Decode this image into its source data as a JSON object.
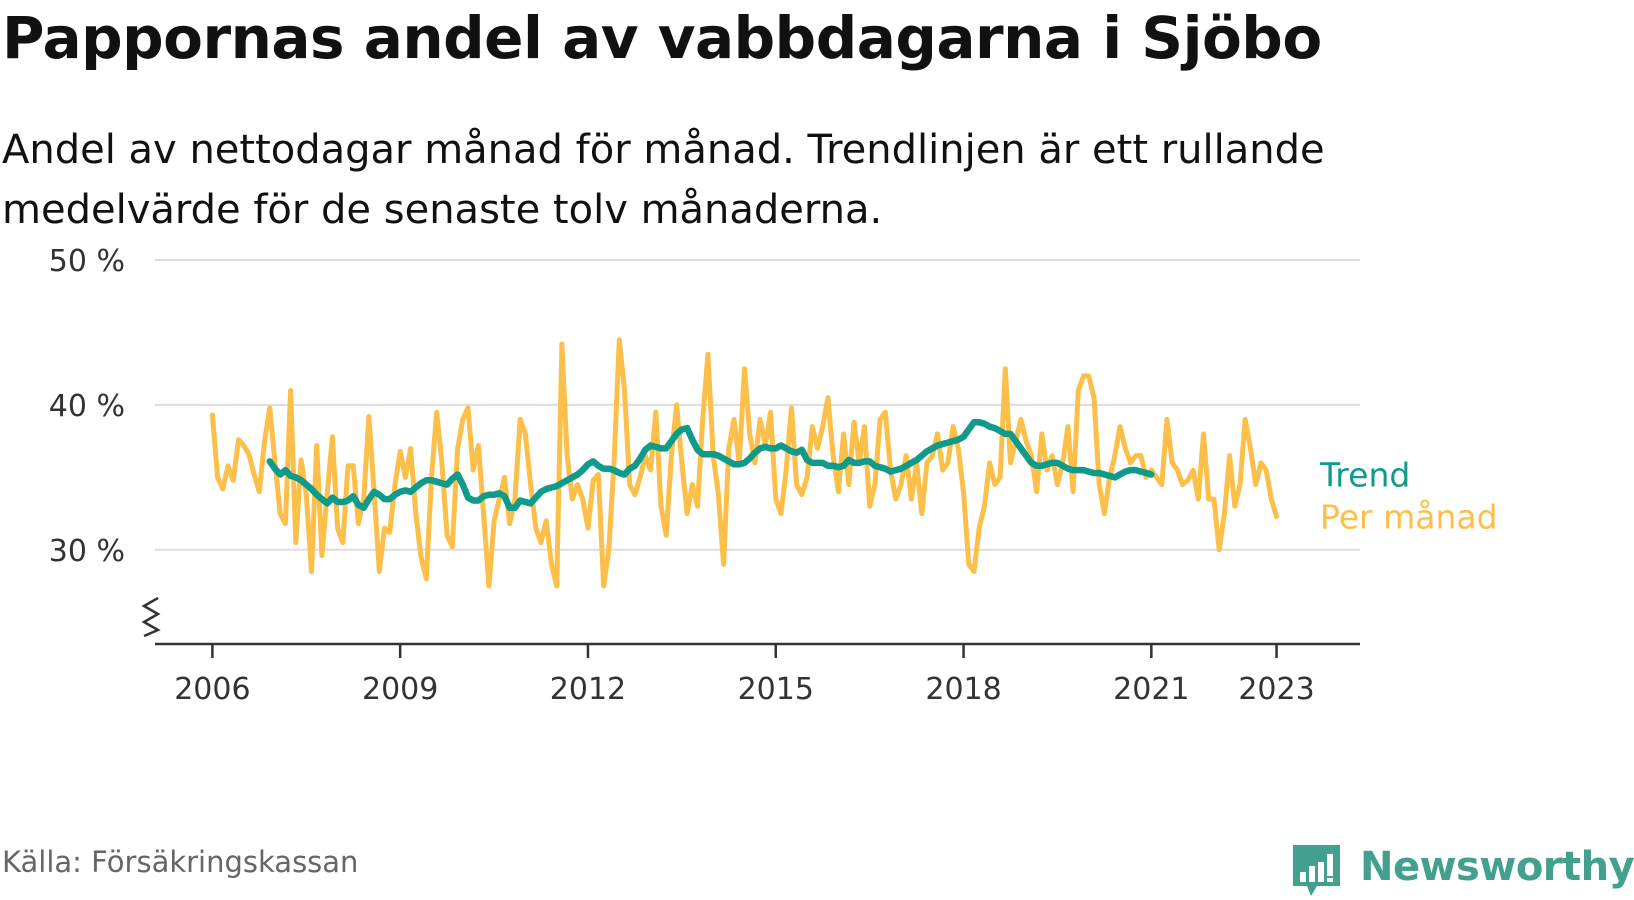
{
  "title": "Pappornas andel av vabbdagarna i Sjöbo",
  "subtitle": "Andel av nettodagar månad för månad. Trendlinjen är ett rullande medelvärde för de senaste tolv månaderna.",
  "source": "Källa: Försäkringskassan",
  "brand": {
    "name": "Newsworthy",
    "icon": "bar-chart-speech-bubble-icon",
    "color": "#43a08f"
  },
  "chart_data": {
    "type": "line",
    "x_start": "2006-01",
    "x_end": "2023-05",
    "xlim": [
      "2005-02",
      "2024-05"
    ],
    "ylim": [
      23.5,
      50
    ],
    "y_break": true,
    "grid": true,
    "y_ticks": [
      {
        "value": 30,
        "label": "30 %"
      },
      {
        "value": 40,
        "label": "40 %"
      },
      {
        "value": 50,
        "label": "50 %"
      }
    ],
    "x_ticks": [
      {
        "value": "2006-01",
        "label": "2006"
      },
      {
        "value": "2009-01",
        "label": "2009"
      },
      {
        "value": "2012-01",
        "label": "2012"
      },
      {
        "value": "2015-01",
        "label": "2015"
      },
      {
        "value": "2018-01",
        "label": "2018"
      },
      {
        "value": "2021-01",
        "label": "2021"
      },
      {
        "value": "2023-01",
        "label": "2023"
      }
    ],
    "legend_placement": "right-end-of-lines",
    "series": [
      {
        "name": "Per månad",
        "color": "#fcc04a",
        "start": "2006-01",
        "values": [
          39.3,
          35.0,
          34.2,
          35.8,
          34.8,
          37.6,
          37.2,
          36.6,
          35.2,
          34.0,
          37.5,
          39.8,
          36.0,
          32.5,
          31.8,
          41.0,
          30.5,
          36.2,
          33.8,
          28.5,
          37.2,
          29.6,
          33.8,
          37.8,
          31.5,
          30.5,
          35.8,
          35.8,
          31.8,
          33.5,
          39.2,
          34.0,
          28.5,
          31.5,
          31.2,
          34.5,
          36.8,
          35.0,
          37.0,
          32.5,
          29.5,
          28.0,
          35.0,
          39.5,
          36.0,
          31.0,
          30.2,
          37.0,
          39.0,
          39.8,
          35.5,
          37.2,
          32.5,
          27.5,
          32.0,
          33.5,
          35.0,
          31.8,
          33.5,
          39.0,
          38.0,
          34.5,
          31.5,
          30.5,
          32.0,
          29.0,
          27.5,
          44.2,
          36.5,
          33.5,
          34.5,
          33.5,
          31.5,
          34.8,
          35.2,
          27.5,
          30.0,
          36.0,
          44.5,
          41.0,
          34.5,
          33.8,
          35.0,
          36.5,
          35.5,
          39.5,
          33.0,
          31.0,
          36.5,
          40.0,
          36.0,
          32.5,
          34.5,
          33.0,
          39.0,
          43.5,
          36.5,
          33.8,
          29.0,
          37.0,
          39.0,
          36.0,
          42.5,
          38.0,
          36.0,
          39.0,
          37.2,
          39.5,
          33.5,
          32.5,
          35.5,
          39.8,
          34.5,
          33.8,
          35.0,
          38.5,
          37.0,
          38.5,
          40.5,
          36.5,
          34.0,
          38.0,
          34.5,
          38.8,
          36.0,
          38.5,
          33.0,
          34.5,
          39.0,
          39.5,
          35.5,
          33.5,
          34.5,
          36.5,
          33.5,
          36.0,
          32.5,
          36.0,
          36.5,
          38.0,
          35.5,
          36.0,
          38.5,
          37.0,
          34.0,
          29.0,
          28.5,
          31.5,
          33.0,
          36.0,
          34.5,
          35.0,
          42.5,
          36.0,
          37.5,
          39.0,
          37.5,
          36.5,
          34.0,
          38.0,
          35.5,
          36.5,
          34.5,
          36.0,
          38.5,
          34.0,
          41.0,
          42.0,
          42.0,
          40.5,
          34.5,
          32.5,
          35.0,
          36.5,
          38.5,
          37.0,
          36.0,
          36.5,
          36.5,
          35.0,
          35.5,
          35.0,
          34.5,
          39.0,
          36.0,
          35.5,
          34.5,
          34.8,
          35.5,
          33.5,
          38.0,
          33.5,
          33.5,
          30.0,
          32.5,
          36.5,
          33.0,
          34.5,
          39.0,
          37.0,
          34.5,
          36.0,
          35.5,
          33.5,
          32.3
        ]
      },
      {
        "name": "Trend",
        "color": "#0f9a8a",
        "start": "2006-12",
        "values": [
          36.1,
          35.6,
          35.2,
          35.5,
          35.1,
          35.0,
          34.8,
          34.5,
          34.2,
          33.8,
          33.5,
          33.2,
          33.6,
          33.3,
          33.3,
          33.4,
          33.7,
          33.1,
          32.9,
          33.5,
          34.0,
          33.8,
          33.5,
          33.5,
          33.8,
          34.0,
          34.1,
          34.0,
          34.3,
          34.6,
          34.8,
          34.8,
          34.7,
          34.6,
          34.5,
          34.9,
          35.2,
          34.5,
          33.6,
          33.4,
          33.4,
          33.7,
          33.8,
          33.8,
          33.9,
          33.7,
          32.9,
          32.9,
          33.4,
          33.3,
          33.2,
          33.6,
          34.0,
          34.2,
          34.3,
          34.4,
          34.6,
          34.8,
          35.0,
          35.2,
          35.5,
          35.9,
          36.1,
          35.8,
          35.6,
          35.6,
          35.5,
          35.3,
          35.2,
          35.6,
          35.8,
          36.3,
          36.9,
          37.2,
          37.1,
          37.0,
          37.0,
          37.5,
          38.0,
          38.3,
          38.4,
          37.6,
          36.9,
          36.6,
          36.6,
          36.6,
          36.5,
          36.3,
          36.1,
          35.9,
          35.9,
          36.0,
          36.3,
          36.7,
          37.0,
          37.1,
          37.0,
          37.0,
          37.2,
          37.0,
          36.8,
          36.7,
          36.9,
          36.2,
          36.0,
          36.0,
          36.0,
          35.8,
          35.8,
          35.7,
          35.8,
          36.2,
          36.0,
          36.0,
          36.1,
          36.1,
          35.8,
          35.7,
          35.6,
          35.4,
          35.5,
          35.6,
          35.8,
          36.0,
          36.2,
          36.5,
          36.8,
          37.0,
          37.2,
          37.3,
          37.4,
          37.5,
          37.6,
          37.8,
          38.3,
          38.8,
          38.8,
          38.7,
          38.5,
          38.4,
          38.2,
          38.0,
          38.0,
          37.5,
          37.0,
          36.5,
          36.0,
          35.8,
          35.8,
          35.9,
          36.0,
          36.0,
          35.8,
          35.6,
          35.5,
          35.5,
          35.5,
          35.4,
          35.3,
          35.3,
          35.2,
          35.1,
          35.0,
          35.2,
          35.4,
          35.5,
          35.5,
          35.4,
          35.3,
          35.2
        ]
      }
    ]
  }
}
